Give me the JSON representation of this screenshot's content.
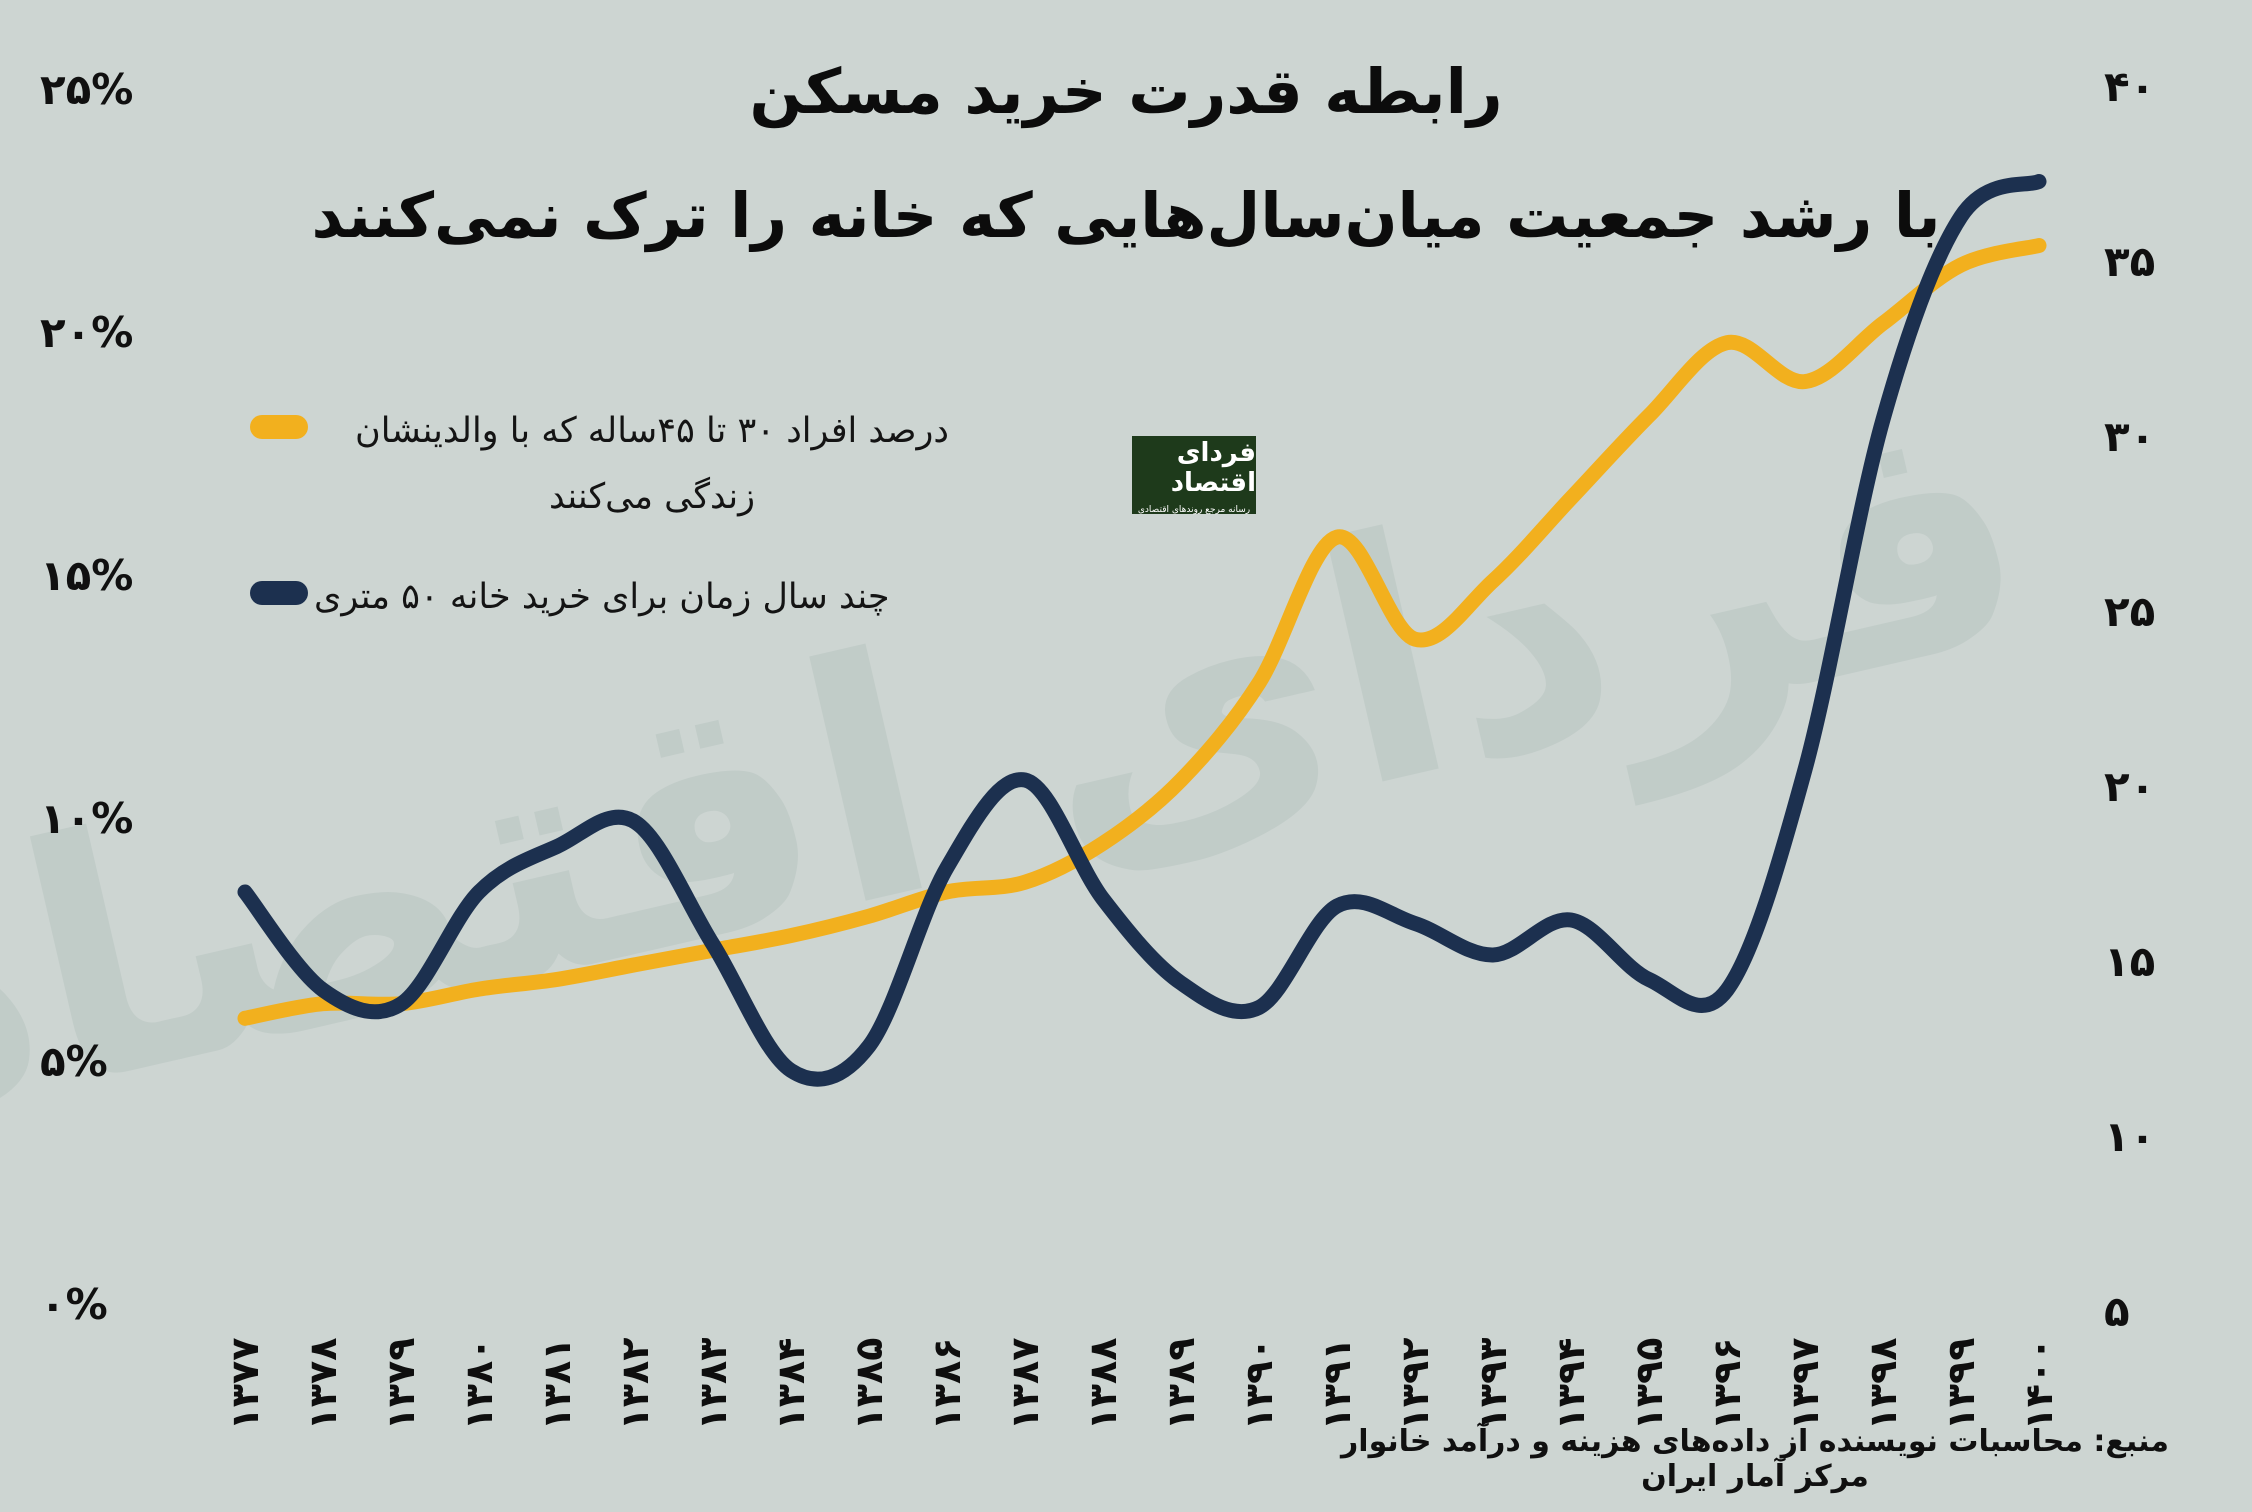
{
  "page": {
    "bg_color": "#cdd5d2",
    "text_color": "#0c0c0c"
  },
  "title": {
    "line1": "رابطه قدرت خرید مسکن",
    "line2": "با رشد جمعیت میان‌سال‌هایی که خانه را ترک نمی‌کنند"
  },
  "legend": {
    "items": [
      {
        "label": "درصد افراد ۳۰ تا ۴۵ساله که با والدینشان زندگی می‌کنند",
        "color": "#f2b01e"
      },
      {
        "label": "چند سال زمان برای خرید خانه ۵۰ متری",
        "color": "#1c304f"
      }
    ]
  },
  "watermark": {
    "text": "فردای اقتصاد"
  },
  "logo": {
    "title": "فردای اقتصاد",
    "subtitle": "رسانه مرجع روندهای اقتصادی",
    "bg_color": "#1e3a1b"
  },
  "source_note": "منبع: محاسبات نویسنده از داده‌های هزینه و درآمد خانوار مرکز آمار ایران",
  "chart_data": {
    "type": "line",
    "title": "رابطه قدرت خرید مسکن با رشد جمعیت میان‌سال‌هایی که خانه را ترک نمی‌کنند",
    "grid": false,
    "legend_position": "top-left",
    "categories": [
      "۱۳۷۷",
      "۱۳۷۸",
      "۱۳۷۹",
      "۱۳۸۰",
      "۱۳۸۱",
      "۱۳۸۲",
      "۱۳۸۳",
      "۱۳۸۴",
      "۱۳۸۵",
      "۱۳۸۶",
      "۱۳۸۷",
      "۱۳۸۸",
      "۱۳۸۹",
      "۱۳۹۰",
      "۱۳۹۱",
      "۱۳۹۲",
      "۱۳۹۳",
      "۱۳۹۴",
      "۱۳۹۵",
      "۱۳۹۶",
      "۱۳۹۷",
      "۱۳۹۸",
      "۱۳۹۹",
      "۱۴۰۰"
    ],
    "series": [
      {
        "name": "درصد افراد ۳۰ تا ۴۵ساله که با والدینشان زندگی می‌کنند",
        "axis": "left",
        "color": "#f2b01e",
        "values": [
          5.9,
          6.2,
          6.2,
          6.5,
          6.7,
          7.0,
          7.3,
          7.6,
          8.0,
          8.5,
          8.7,
          9.5,
          10.8,
          12.8,
          15.8,
          13.7,
          14.9,
          16.6,
          18.3,
          19.8,
          19.0,
          20.2,
          21.4,
          21.8
        ]
      },
      {
        "name": "چند سال زمان برای خرید خانه ۵۰ متری",
        "axis": "right",
        "color": "#1c304f",
        "values": [
          17.0,
          14.2,
          13.8,
          17.0,
          18.3,
          19.0,
          15.5,
          11.9,
          12.6,
          17.7,
          20.2,
          16.8,
          14.4,
          13.7,
          16.6,
          16.1,
          15.2,
          16.2,
          14.5,
          14.2,
          20.5,
          30.5,
          36.3,
          37.3
        ]
      }
    ],
    "left_axis": {
      "unit": "%",
      "min": 0,
      "max": 25,
      "ticks": [
        {
          "label": "۲۵%",
          "value": 25
        },
        {
          "label": "۲۰%",
          "value": 20
        },
        {
          "label": "۱۵%",
          "value": 15
        },
        {
          "label": "۱۰%",
          "value": 10
        },
        {
          "label": "۵%",
          "value": 5
        },
        {
          "label": "۰%",
          "value": 0
        }
      ]
    },
    "right_axis": {
      "unit": "سال",
      "min": 5,
      "max": 40,
      "ticks": [
        {
          "label": "۴۰",
          "value": 40
        },
        {
          "label": "۳۵",
          "value": 35
        },
        {
          "label": "۳۰",
          "value": 30
        },
        {
          "label": "۲۵",
          "value": 25
        },
        {
          "label": "۲۰",
          "value": 20
        },
        {
          "label": "۱۵",
          "value": 15
        },
        {
          "label": "۱۰",
          "value": 10
        },
        {
          "label": "۵",
          "value": 5
        }
      ]
    }
  }
}
